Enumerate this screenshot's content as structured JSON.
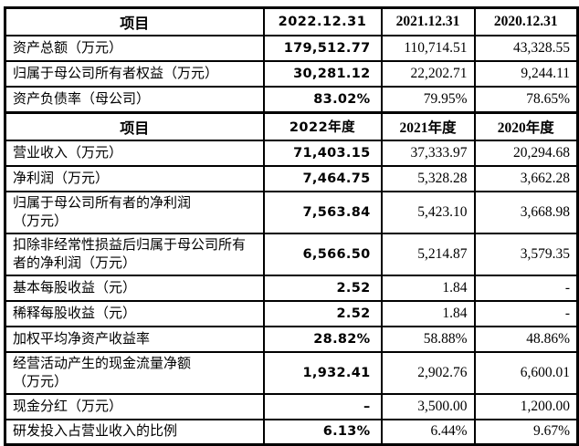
{
  "page": {
    "background_color": "#ffffff",
    "border_color": "#000000",
    "text_color": "#000000"
  },
  "balance_table": {
    "headers": [
      "项目",
      "2022.12.31",
      "2021.12.31",
      "2020.12.31"
    ],
    "rows": [
      {
        "label": "资产总额（万元）",
        "values": [
          "179,512.77",
          "110,714.51",
          "43,328.55"
        ]
      },
      {
        "label": "归属于母公司所有者权益（万元）",
        "values": [
          "30,281.12",
          "22,202.71",
          "9,244.11"
        ]
      },
      {
        "label": "资产负债率（母公司）",
        "values": [
          "83.02%",
          "79.95%",
          "78.65%"
        ]
      }
    ]
  },
  "income_table": {
    "headers": [
      "项目",
      "2022年度",
      "2021年度",
      "2020年度"
    ],
    "rows": [
      {
        "label": "营业收入（万元）",
        "values": [
          "71,403.15",
          "37,333.97",
          "20,294.68"
        ]
      },
      {
        "label": "净利润（万元）",
        "values": [
          "7,464.75",
          "5,328.28",
          "3,662.28"
        ]
      },
      {
        "label": "归属于母公司所有者的净利润\n（万元）",
        "values": [
          "7,563.84",
          "5,423.10",
          "3,668.98"
        ]
      },
      {
        "label": "扣除非经常性损益后归属于母公司所有\n者的净利润（万元）",
        "values": [
          "6,566.50",
          "5,214.87",
          "3,579.35"
        ]
      },
      {
        "label": "基本每股收益（元）",
        "values": [
          "2.52",
          "1.84",
          "-"
        ]
      },
      {
        "label": "稀释每股收益（元）",
        "values": [
          "2.52",
          "1.84",
          "-"
        ]
      },
      {
        "label": "加权平均净资产收益率",
        "values": [
          "28.82%",
          "58.88%",
          "48.86%"
        ]
      },
      {
        "label": "经营活动产生的现金流量净额\n（万元）",
        "values": [
          "1,932.41",
          "2,902.76",
          "6,600.01"
        ]
      },
      {
        "label": "现金分红（万元）",
        "values": [
          "–",
          "3,500.00",
          "1,200.00"
        ]
      },
      {
        "label": "研发投入占营业收入的比例",
        "values": [
          "6.13%",
          "6.44%",
          "9.67%"
        ]
      }
    ]
  }
}
